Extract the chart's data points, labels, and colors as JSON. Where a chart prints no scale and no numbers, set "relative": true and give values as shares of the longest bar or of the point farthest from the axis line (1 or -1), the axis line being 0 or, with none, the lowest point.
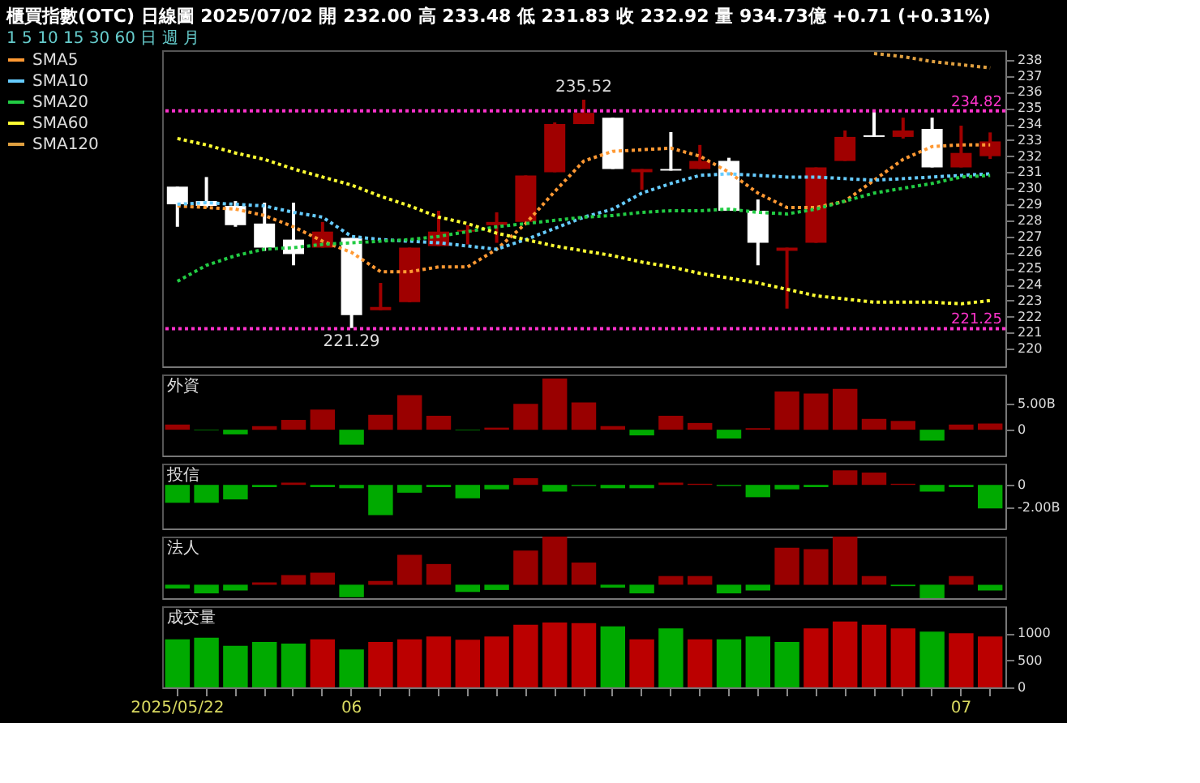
{
  "chart_data": [
    {
      "type": "candlestick",
      "title": "櫃買指數(OTC)  日線圖  2025/07/02  開 232.00  高 233.48  低 231.83  收 232.92  量 934.73億  +0.71 (+0.31%)",
      "subtitle": "1  5  10  15  30  60  日  週  月",
      "categories": [
        "2025/05/22",
        null,
        null,
        null,
        null,
        null,
        "06",
        null,
        null,
        null,
        null,
        null,
        null,
        null,
        null,
        null,
        null,
        null,
        null,
        null,
        null,
        null,
        null,
        null,
        null,
        null,
        null,
        "07",
        null
      ],
      "ohlc": [
        [
          230.1,
          230.1,
          227.6,
          229.0
        ],
        [
          229.2,
          230.7,
          228.8,
          228.9
        ],
        [
          228.9,
          229.2,
          227.6,
          227.7
        ],
        [
          227.8,
          229.1,
          226.1,
          226.3
        ],
        [
          226.8,
          229.1,
          225.2,
          225.9
        ],
        [
          226.3,
          227.9,
          226.3,
          227.3
        ],
        [
          226.9,
          226.9,
          221.29,
          222.1
        ],
        [
          222.4,
          224.1,
          222.4,
          222.6
        ],
        [
          222.9,
          226.3,
          222.9,
          226.3
        ],
        [
          226.4,
          228.6,
          226.4,
          227.3
        ],
        [
          227.3,
          227.7,
          226.5,
          227.4
        ],
        [
          227.7,
          228.5,
          226.6,
          227.9
        ],
        [
          227.9,
          230.8,
          227.9,
          230.8
        ],
        [
          231.0,
          234.1,
          231.0,
          234.0
        ],
        [
          234.0,
          235.52,
          234.0,
          234.7
        ],
        [
          234.4,
          234.4,
          231.2,
          231.2
        ],
        [
          231.0,
          231.2,
          229.9,
          231.2
        ],
        [
          231.2,
          233.5,
          231.1,
          231.1
        ],
        [
          231.2,
          232.7,
          231.2,
          231.7
        ],
        [
          231.7,
          231.9,
          228.6,
          228.6
        ],
        [
          228.6,
          229.3,
          225.2,
          226.6
        ],
        [
          226.1,
          226.3,
          222.5,
          226.3
        ],
        [
          226.6,
          231.3,
          226.6,
          231.3
        ],
        [
          231.7,
          233.6,
          231.7,
          233.2
        ],
        [
          233.3,
          234.8,
          233.2,
          233.2
        ],
        [
          233.2,
          234.4,
          233.1,
          233.6
        ],
        [
          233.7,
          234.4,
          231.3,
          231.3
        ],
        [
          231.3,
          233.9,
          231.3,
          232.2
        ],
        [
          232.0,
          233.48,
          231.83,
          232.92
        ]
      ],
      "colors": [
        "#ffffff",
        "#ffffff",
        "#ffffff",
        "#ffffff",
        "#ffffff",
        "#a00000",
        "#ffffff",
        "#a00000",
        "#a00000",
        "#a00000",
        "#a00000",
        "#a00000",
        "#a00000",
        "#a00000",
        "#a00000",
        "#ffffff",
        "#a00000",
        "#ffffff",
        "#a00000",
        "#ffffff",
        "#ffffff",
        "#a00000",
        "#a00000",
        "#a00000",
        "#ffffff",
        "#a00000",
        "#ffffff",
        "#a00000",
        "#a00000"
      ],
      "series": [
        {
          "name": "SMA5",
          "type": "line",
          "color": "#ff9933",
          "values": [
            228.9,
            228.8,
            228.7,
            228.3,
            227.6,
            226.7,
            226.0,
            224.8,
            224.8,
            225.1,
            225.1,
            226.2,
            227.8,
            229.8,
            231.7,
            232.3,
            232.4,
            232.5,
            232.0,
            231.0,
            229.7,
            228.8,
            228.8,
            229.2,
            230.5,
            231.8,
            232.6,
            232.7,
            232.7
          ]
        },
        {
          "name": "SMA10",
          "type": "line",
          "color": "#66ccff",
          "values": [
            229.0,
            229.1,
            229.0,
            228.9,
            228.5,
            228.2,
            227.0,
            226.8,
            226.7,
            226.6,
            226.4,
            226.2,
            226.8,
            227.5,
            228.2,
            228.7,
            229.7,
            230.3,
            230.8,
            230.9,
            230.8,
            230.7,
            230.7,
            230.6,
            230.5,
            230.6,
            230.7,
            230.8,
            230.9
          ]
        },
        {
          "name": "SMA20",
          "type": "line",
          "color": "#22cc44",
          "values": [
            224.2,
            225.2,
            225.8,
            226.2,
            226.3,
            226.5,
            226.6,
            226.7,
            226.8,
            227.0,
            227.3,
            227.6,
            227.8,
            228.0,
            228.2,
            228.3,
            228.5,
            228.6,
            228.6,
            228.7,
            228.5,
            228.4,
            228.7,
            229.2,
            229.7,
            230.0,
            230.3,
            230.7,
            230.8
          ]
        },
        {
          "name": "SMA60",
          "type": "line",
          "color": "#ffff33",
          "values": [
            233.1,
            232.7,
            232.2,
            231.8,
            231.2,
            230.7,
            230.2,
            229.5,
            228.9,
            228.2,
            227.8,
            227.2,
            226.8,
            226.4,
            226.1,
            225.8,
            225.4,
            225.1,
            224.7,
            224.4,
            224.1,
            223.7,
            223.3,
            223.1,
            222.9,
            222.9,
            222.9,
            222.8,
            223.0
          ]
        },
        {
          "name": "SMA120",
          "type": "line",
          "color": "#e0a040",
          "values": [
            null,
            null,
            null,
            null,
            null,
            null,
            null,
            null,
            null,
            null,
            null,
            null,
            null,
            null,
            null,
            null,
            null,
            null,
            null,
            null,
            null,
            null,
            null,
            null,
            238.4,
            238.2,
            237.9,
            237.7,
            237.5
          ]
        }
      ],
      "line_style": "dotted",
      "legend": "left",
      "ylim": [
        218.9,
        238.6
      ],
      "yticks": [
        220,
        221,
        222,
        223,
        224,
        225,
        226,
        227,
        228,
        229,
        230,
        231,
        232,
        233,
        234,
        235,
        236,
        237,
        238
      ],
      "ref_lines": [
        {
          "axis": "y",
          "value": 234.82,
          "label": "234.82",
          "color": "#ff33cc",
          "line_style": "dotted"
        },
        {
          "axis": "y",
          "value": 221.25,
          "label": "221.25",
          "color": "#ff33cc",
          "line_style": "dotted"
        }
      ],
      "annotations": [
        {
          "text": "235.52",
          "y": 235.52
        },
        {
          "text": "221.29",
          "y": 221.29
        }
      ],
      "tick_labels": "y"
    },
    {
      "type": "bar",
      "title": "外資",
      "categories": [
        "2025/05/22",
        null,
        null,
        null,
        null,
        null,
        "06",
        null,
        null,
        null,
        null,
        null,
        null,
        null,
        null,
        null,
        null,
        null,
        null,
        null,
        null,
        null,
        null,
        null,
        null,
        null,
        null,
        "07",
        null
      ],
      "values": [
        1.0,
        -0.1,
        -0.9,
        0.7,
        1.9,
        3.9,
        -2.9,
        2.9,
        6.7,
        2.7,
        -0.1,
        0.4,
        5.0,
        9.9,
        5.3,
        0.7,
        -1.1,
        2.7,
        1.3,
        -1.7,
        0.3,
        7.4,
        7.0,
        7.9,
        2.1,
        1.7,
        -2.1,
        1.0,
        1.2
      ],
      "colors": [
        "#990000",
        "#00aa00",
        "#00aa00",
        "#990000",
        "#990000",
        "#990000",
        "#00aa00",
        "#990000",
        "#990000",
        "#990000",
        "#00aa00",
        "#990000",
        "#990000",
        "#990000",
        "#990000",
        "#990000",
        "#00aa00",
        "#990000",
        "#990000",
        "#00aa00",
        "#990000",
        "#990000",
        "#990000",
        "#990000",
        "#990000",
        "#990000",
        "#00aa00",
        "#990000",
        "#990000"
      ],
      "ylim": [
        -5,
        10.7
      ],
      "yticks": [
        0,
        {
          "value": 5,
          "label": "5.00B"
        }
      ],
      "tick_labels": "y"
    },
    {
      "type": "bar",
      "title": "投信",
      "categories": [
        "2025/05/22",
        null,
        null,
        null,
        null,
        null,
        "06",
        null,
        null,
        null,
        null,
        null,
        null,
        null,
        null,
        null,
        null,
        null,
        null,
        null,
        null,
        null,
        null,
        null,
        null,
        null,
        null,
        "07",
        null
      ],
      "values": [
        -1.6,
        -1.6,
        -1.3,
        -0.2,
        0.2,
        -0.2,
        -0.3,
        -2.7,
        -0.7,
        -0.2,
        -1.2,
        -0.4,
        0.6,
        -0.6,
        -0.1,
        -0.3,
        -0.3,
        0.2,
        0.1,
        -0.1,
        -1.1,
        -0.4,
        -0.2,
        1.3,
        1.1,
        0.1,
        -0.6,
        -0.2,
        -2.1
      ],
      "colors": [
        "#00aa00",
        "#00aa00",
        "#00aa00",
        "#00aa00",
        "#990000",
        "#00aa00",
        "#00aa00",
        "#00aa00",
        "#00aa00",
        "#00aa00",
        "#00aa00",
        "#00aa00",
        "#990000",
        "#00aa00",
        "#00aa00",
        "#00aa00",
        "#00aa00",
        "#990000",
        "#990000",
        "#00aa00",
        "#00aa00",
        "#00aa00",
        "#00aa00",
        "#990000",
        "#990000",
        "#990000",
        "#00aa00",
        "#00aa00",
        "#00aa00"
      ],
      "ylim": [
        -3.9,
        1.9
      ],
      "yticks": [
        0,
        {
          "value": -2,
          "label": "-2.00B"
        }
      ],
      "tick_labels": "y"
    },
    {
      "type": "bar",
      "title": "法人",
      "relative": true,
      "categories": [
        "2025/05/22",
        null,
        null,
        null,
        null,
        null,
        "06",
        null,
        null,
        null,
        null,
        null,
        null,
        null,
        null,
        null,
        null,
        null,
        null,
        null,
        null,
        null,
        null,
        null,
        null,
        null,
        null,
        "07",
        null
      ],
      "values": [
        -0.08,
        -0.18,
        -0.12,
        0.05,
        0.2,
        0.25,
        -0.26,
        0.08,
        0.62,
        0.43,
        -0.15,
        -0.11,
        0.71,
        1,
        0.46,
        -0.06,
        -0.18,
        0.18,
        0.18,
        -0.18,
        -0.12,
        0.77,
        0.74,
        1,
        0.18,
        -0.03,
        -0.28,
        0.18,
        -0.12
      ],
      "colors": [
        "#00aa00",
        "#00aa00",
        "#00aa00",
        "#990000",
        "#990000",
        "#990000",
        "#00aa00",
        "#990000",
        "#990000",
        "#990000",
        "#00aa00",
        "#00aa00",
        "#990000",
        "#990000",
        "#990000",
        "#00aa00",
        "#00aa00",
        "#990000",
        "#990000",
        "#00aa00",
        "#00aa00",
        "#990000",
        "#990000",
        "#990000",
        "#990000",
        "#00aa00",
        "#00aa00",
        "#990000",
        "#00aa00"
      ],
      "tick_labels": false
    },
    {
      "type": "bar",
      "title": "成交量",
      "categories": [
        "2025/05/22",
        null,
        null,
        null,
        null,
        null,
        "06",
        null,
        null,
        null,
        null,
        null,
        null,
        null,
        null,
        null,
        null,
        null,
        null,
        null,
        null,
        null,
        null,
        null,
        null,
        null,
        null,
        "07",
        null
      ],
      "values": [
        890,
        920,
        770,
        840,
        810,
        890,
        700,
        840,
        890,
        940,
        880,
        940,
        1160,
        1200,
        1190,
        1130,
        890,
        1090,
        890,
        890,
        940,
        840,
        1090,
        1220,
        1160,
        1090,
        1030,
        1000,
        940
      ],
      "colors": [
        "#00aa00",
        "#00aa00",
        "#00aa00",
        "#00aa00",
        "#00aa00",
        "#bb0000",
        "#00aa00",
        "#bb0000",
        "#bb0000",
        "#bb0000",
        "#bb0000",
        "#bb0000",
        "#bb0000",
        "#bb0000",
        "#bb0000",
        "#00aa00",
        "#bb0000",
        "#00aa00",
        "#bb0000",
        "#00aa00",
        "#00aa00",
        "#00aa00",
        "#bb0000",
        "#bb0000",
        "#bb0000",
        "#bb0000",
        "#00aa00",
        "#bb0000",
        "#bb0000"
      ],
      "ylim": [
        0,
        1500
      ],
      "yticks": [
        0,
        500,
        1000
      ]
    }
  ]
}
